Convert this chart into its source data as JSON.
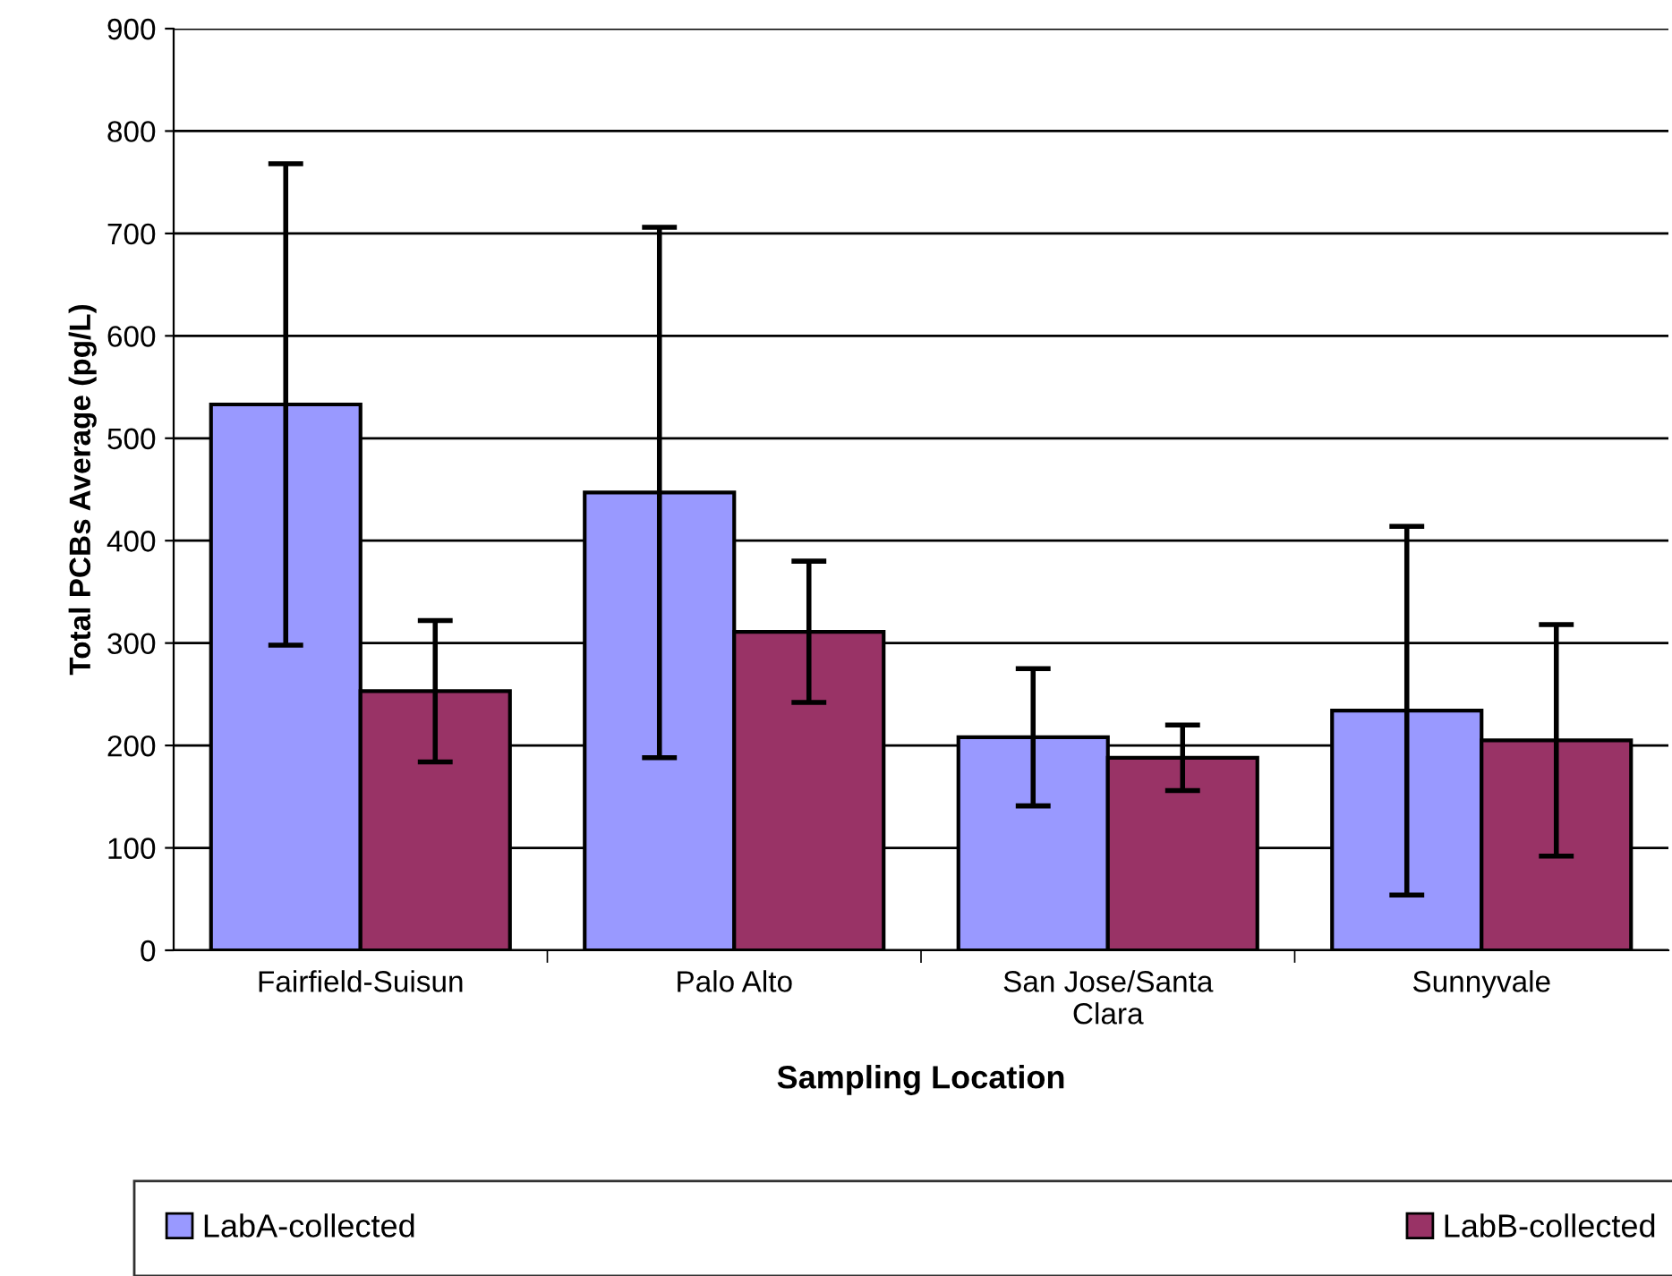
{
  "chart_data": {
    "type": "bar",
    "xlabel": "Sampling Location",
    "ylabel": "Total PCBs Average (pg/L)",
    "categories": [
      "Fairfield-Suisun",
      "Palo Alto",
      "San Jose/Santa\nClara",
      "Sunnyvale"
    ],
    "series": [
      {
        "name": "LabA-collected",
        "color": "#9999ff",
        "values": [
          533,
          447,
          208,
          234
        ],
        "errors": [
          235,
          259,
          67,
          180
        ]
      },
      {
        "name": "LabB-collected",
        "color": "#993366",
        "values": [
          253,
          311,
          188,
          205
        ],
        "errors": [
          69,
          69,
          32,
          113
        ]
      }
    ],
    "ylim": [
      0,
      900
    ],
    "yticks": [
      0,
      100,
      200,
      300,
      400,
      500,
      600,
      700,
      800,
      900
    ],
    "grid": "y",
    "legend": "bottom"
  }
}
